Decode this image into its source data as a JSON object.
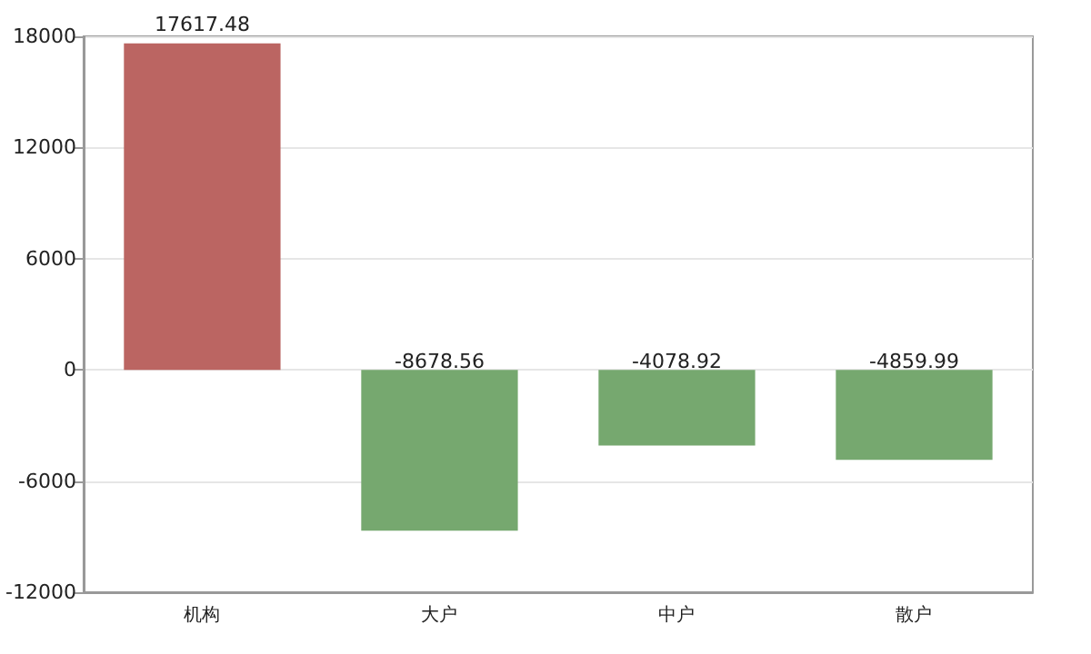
{
  "chart_data": {
    "type": "bar",
    "categories": [
      "机构",
      "大户",
      "中户",
      "散户"
    ],
    "values": [
      17617.48,
      -8678.56,
      -4078.92,
      -4859.99
    ],
    "colors": [
      "#bb6562",
      "#76a86f",
      "#76a86f",
      "#76a86f"
    ],
    "ylim": [
      -12000,
      18000
    ],
    "yticks": [
      -12000,
      -6000,
      0,
      6000,
      12000,
      18000
    ],
    "grid": "y",
    "data_labels": true
  }
}
